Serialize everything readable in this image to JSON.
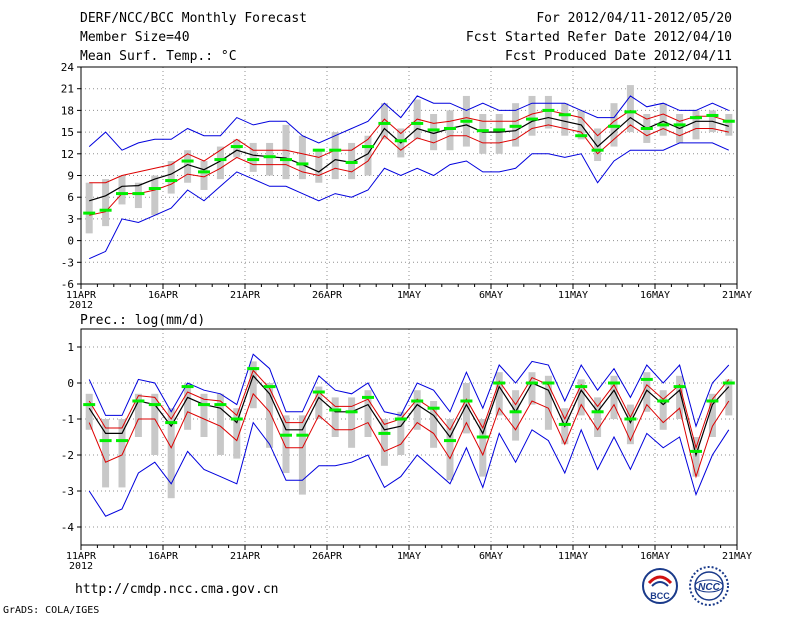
{
  "header": {
    "title": "DERF/NCC/BCC Monthly Forecast",
    "member_size": "Member Size=40",
    "variable": "Mean Surf. Temp.: °C",
    "forecast_period": "For 2012/04/11-2012/05/20",
    "started_refer": "Fcst Started Refer Date 2012/04/10",
    "produced": "Fcst Produced Date 2012/04/11"
  },
  "footer": {
    "url": "http://cmdp.ncc.cma.gov.cn",
    "credit": "GrADS: COLA/IGES",
    "logo_bcc_text": "BCC",
    "logo_ncc_text": "NCC"
  },
  "colors": {
    "box": "#c8c8c8",
    "median": "#00ee00",
    "mean": "#000000",
    "inner": "#dd0000",
    "outer": "#0000dd",
    "grid": "#909090"
  },
  "chart_data": [
    {
      "type": "line",
      "title": "Mean Surf. Temp.: °C",
      "x_start": "2012-04-11",
      "ylim": [
        -6,
        24
      ],
      "yticks": [
        -6,
        -3,
        0,
        3,
        6,
        9,
        12,
        15,
        18,
        21,
        24
      ],
      "xtick_labels": [
        "11APR",
        "16APR",
        "21APR",
        "26APR",
        "1MAY",
        "6MAY",
        "11MAY",
        "16MAY",
        "21MAY"
      ],
      "xtick_year": "2012",
      "grid": true,
      "series": [
        {
          "name": "ensemble mean",
          "values": [
            5.5,
            6.2,
            7.5,
            7.6,
            8.5,
            9.2,
            10.5,
            9.8,
            11.0,
            12.5,
            11.8,
            11.6,
            11.4,
            10.5,
            9.5,
            11.2,
            10.8,
            12.0,
            15.5,
            13.5,
            15.5,
            14.8,
            15.5,
            16.0,
            15.0,
            15.0,
            15.2,
            16.5,
            17.0,
            16.5,
            16.0,
            13.0,
            15.0,
            17.0,
            15.5,
            16.5,
            15.5,
            16.5,
            16.5,
            15.8
          ]
        },
        {
          "name": "upper spread",
          "values": [
            8.0,
            8.0,
            9.0,
            9.5,
            10.0,
            10.5,
            12.0,
            11.0,
            12.5,
            14.0,
            12.5,
            12.5,
            12.5,
            12.0,
            11.5,
            12.5,
            12.5,
            14.0,
            16.8,
            14.8,
            16.8,
            16.2,
            16.5,
            17.0,
            16.5,
            16.5,
            16.5,
            17.5,
            18.0,
            17.5,
            17.0,
            14.5,
            16.5,
            18.0,
            16.8,
            17.5,
            16.5,
            17.2,
            17.2,
            16.5
          ]
        },
        {
          "name": "lower spread",
          "values": [
            3.5,
            4.0,
            6.5,
            6.5,
            7.0,
            7.8,
            9.2,
            8.8,
            10.0,
            11.5,
            10.5,
            10.5,
            10.5,
            9.5,
            9.0,
            10.0,
            9.5,
            11.0,
            14.5,
            12.5,
            14.2,
            13.5,
            14.5,
            14.5,
            13.5,
            13.5,
            14.0,
            15.5,
            16.0,
            15.5,
            15.0,
            12.0,
            14.0,
            16.0,
            14.5,
            15.5,
            14.5,
            15.5,
            15.5,
            15.0
          ]
        },
        {
          "name": "maximum",
          "values": [
            13,
            15,
            12.5,
            13.5,
            14,
            14,
            15.5,
            14.5,
            14.5,
            17,
            16,
            16.5,
            16.5,
            14.5,
            13.5,
            14.5,
            15.5,
            16.5,
            19,
            17,
            20,
            19,
            19,
            18,
            19,
            18,
            18,
            19,
            19,
            19,
            18,
            17,
            17,
            20,
            18.5,
            19,
            18,
            18,
            19,
            18
          ]
        },
        {
          "name": "minimum",
          "values": [
            -2.5,
            -1.5,
            3,
            2.5,
            3.5,
            4.5,
            7,
            5.5,
            7.5,
            9.5,
            8.5,
            7.5,
            7.5,
            6.5,
            5.5,
            6.5,
            6,
            7,
            10,
            9,
            10,
            9,
            10.5,
            11,
            9.5,
            9.5,
            10,
            12,
            12,
            11.5,
            12,
            8,
            11,
            12.5,
            12.5,
            12.5,
            13.5,
            13.5,
            13.5,
            12.5
          ]
        },
        {
          "name": "median",
          "values": [
            3.8,
            4.2,
            6.5,
            6.5,
            7.2,
            8.3,
            11.0,
            9.5,
            11.2,
            13.0,
            11.2,
            11.6,
            11.2,
            10.6,
            12.5,
            12.5,
            10.8,
            13.0,
            16.2,
            13.8,
            16.2,
            15.3,
            15.5,
            16.5,
            15.2,
            15.3,
            15.8,
            16.8,
            18.0,
            17.4,
            14.5,
            12.5,
            15.8,
            17.8,
            15.5,
            16.0,
            16.0,
            17.0,
            17.3,
            16.5
          ]
        },
        {
          "name": "box upper",
          "values": [
            8,
            8.5,
            9,
            8,
            9,
            11,
            12.5,
            11,
            13,
            14,
            13.5,
            13.5,
            16,
            14.5,
            12.5,
            15,
            13.5,
            14.5,
            19,
            15.5,
            19.5,
            17.5,
            18,
            20,
            17.5,
            17.5,
            19,
            20,
            20,
            19,
            18,
            15.5,
            19,
            21.5,
            17.5,
            19,
            17.5,
            18,
            18,
            17.5
          ]
        },
        {
          "name": "box lower",
          "values": [
            1,
            2,
            5,
            4.5,
            3.5,
            6.5,
            8,
            7,
            8.5,
            11.5,
            9.5,
            9,
            8.5,
            8.5,
            8,
            8.5,
            8.5,
            9,
            14,
            11.5,
            14,
            12.5,
            12.5,
            13,
            12,
            12,
            13,
            14.5,
            15.5,
            14.5,
            14,
            11,
            13,
            15,
            13.5,
            14.5,
            13.5,
            14,
            15,
            14.5
          ]
        }
      ]
    },
    {
      "type": "line",
      "title": "Prec.: log(mm/d)",
      "x_start": "2012-04-11",
      "ylim": [
        -4.5,
        1.5
      ],
      "yticks": [
        -4,
        -3,
        -2,
        -1,
        0,
        1
      ],
      "xtick_labels": [
        "11APR",
        "16APR",
        "21APR",
        "26APR",
        "1MAY",
        "6MAY",
        "11MAY",
        "16MAY",
        "21MAY"
      ],
      "xtick_year": "2012",
      "grid": true,
      "series": [
        {
          "name": "ensemble mean",
          "values": [
            -0.7,
            -1.4,
            -1.4,
            -0.5,
            -0.6,
            -1.2,
            -0.4,
            -0.6,
            -0.7,
            -1.1,
            0.2,
            -0.3,
            -1.3,
            -1.3,
            -0.4,
            -0.8,
            -0.8,
            -0.6,
            -1.3,
            -1.2,
            -0.6,
            -0.9,
            -1.5,
            -0.6,
            -1.4,
            -0.1,
            -0.8,
            0.0,
            -0.2,
            -1.2,
            -0.2,
            -0.8,
            -0.2,
            -1.1,
            -0.2,
            -0.6,
            -0.2,
            -2.0,
            -0.6,
            -0.1
          ]
        },
        {
          "name": "upper spread",
          "values": [
            -0.5,
            -1.25,
            -1.25,
            -0.35,
            -0.4,
            -1.0,
            -0.25,
            -0.45,
            -0.5,
            -0.9,
            0.35,
            -0.15,
            -1.1,
            -1.1,
            -0.25,
            -0.65,
            -0.65,
            -0.45,
            -1.15,
            -1.0,
            -0.45,
            -0.75,
            -1.3,
            -0.45,
            -1.25,
            0.05,
            -0.6,
            0.15,
            -0.05,
            -1.0,
            -0.05,
            -0.65,
            -0.05,
            -0.95,
            -0.05,
            -0.45,
            -0.05,
            -1.8,
            -0.45,
            0.1
          ]
        },
        {
          "name": "lower spread",
          "values": [
            -1.1,
            -2.2,
            -2.0,
            -1.0,
            -1.0,
            -1.8,
            -0.8,
            -1.0,
            -1.2,
            -1.6,
            -0.3,
            -0.8,
            -1.8,
            -1.8,
            -0.9,
            -1.3,
            -1.3,
            -1.1,
            -1.9,
            -1.7,
            -1.1,
            -1.4,
            -2.1,
            -1.1,
            -2.0,
            -0.7,
            -1.3,
            -0.5,
            -0.7,
            -1.7,
            -0.6,
            -1.3,
            -0.6,
            -1.6,
            -0.6,
            -1.1,
            -0.7,
            -2.6,
            -1.2,
            -0.5
          ]
        },
        {
          "name": "maximum",
          "values": [
            0.1,
            -0.9,
            -0.9,
            0.1,
            0.0,
            -0.8,
            0.0,
            -0.2,
            -0.3,
            -0.6,
            0.8,
            0.4,
            -0.8,
            -0.8,
            0.2,
            -0.2,
            -0.3,
            0.0,
            -0.8,
            -0.9,
            0.0,
            -0.2,
            -0.8,
            0.3,
            -0.7,
            0.5,
            0.0,
            0.6,
            0.5,
            -0.5,
            0.5,
            -0.2,
            0.4,
            -0.4,
            0.5,
            0.0,
            0.5,
            -1.2,
            0.0,
            0.5
          ]
        },
        {
          "name": "minimum",
          "values": [
            -3.0,
            -3.7,
            -3.5,
            -2.5,
            -2.2,
            -2.8,
            -1.9,
            -2.4,
            -2.6,
            -2.8,
            -1.1,
            -1.7,
            -2.7,
            -2.7,
            -2.3,
            -2.3,
            -2.2,
            -2.0,
            -2.9,
            -2.6,
            -2.0,
            -2.4,
            -2.8,
            -1.8,
            -2.9,
            -1.4,
            -2.2,
            -1.3,
            -1.6,
            -2.5,
            -1.3,
            -2.4,
            -1.5,
            -2.4,
            -1.4,
            -1.8,
            -1.5,
            -3.1,
            -2.0,
            -1.3
          ]
        },
        {
          "name": "median",
          "values": [
            -0.6,
            -1.6,
            -1.6,
            -0.5,
            -0.6,
            -1.1,
            -0.1,
            -0.6,
            -0.6,
            -1.0,
            0.4,
            -0.1,
            -1.45,
            -1.45,
            -0.25,
            -0.75,
            -0.8,
            -0.4,
            -1.4,
            -1.0,
            -0.5,
            -0.7,
            -1.6,
            -0.5,
            -1.5,
            0.0,
            -0.8,
            0.0,
            0.0,
            -1.15,
            -0.1,
            -0.8,
            0.0,
            -1.0,
            0.1,
            -0.5,
            -0.1,
            -1.9,
            -0.5,
            0.0
          ]
        },
        {
          "name": "box upper",
          "values": [
            -0.3,
            -1.0,
            -1.0,
            -0.3,
            -0.3,
            -0.7,
            0.0,
            -0.3,
            -0.3,
            -0.7,
            0.6,
            0.0,
            -0.9,
            -0.9,
            -0.1,
            -0.4,
            -0.4,
            -0.2,
            -1.0,
            -0.8,
            -0.2,
            -0.5,
            -1.0,
            0.0,
            -1.0,
            0.3,
            -0.2,
            0.3,
            0.2,
            -0.7,
            0.1,
            -0.4,
            0.2,
            -0.6,
            0.3,
            -0.2,
            0.2,
            -1.5,
            -0.3,
            0.1
          ]
        },
        {
          "name": "box lower",
          "values": [
            -1.3,
            -2.9,
            -2.9,
            -1.5,
            -2.0,
            -3.2,
            -1.3,
            -1.5,
            -2.0,
            -2.1,
            -0.7,
            -1.8,
            -2.5,
            -3.1,
            -1.0,
            -1.5,
            -1.8,
            -1.5,
            -2.3,
            -2.0,
            -1.3,
            -1.8,
            -2.7,
            -1.4,
            -2.6,
            -0.9,
            -1.6,
            -0.6,
            -1.3,
            -1.7,
            -0.9,
            -1.5,
            -1.0,
            -1.7,
            -0.8,
            -1.3,
            -1.0,
            -2.6,
            -1.5,
            -0.9
          ]
        }
      ]
    }
  ]
}
